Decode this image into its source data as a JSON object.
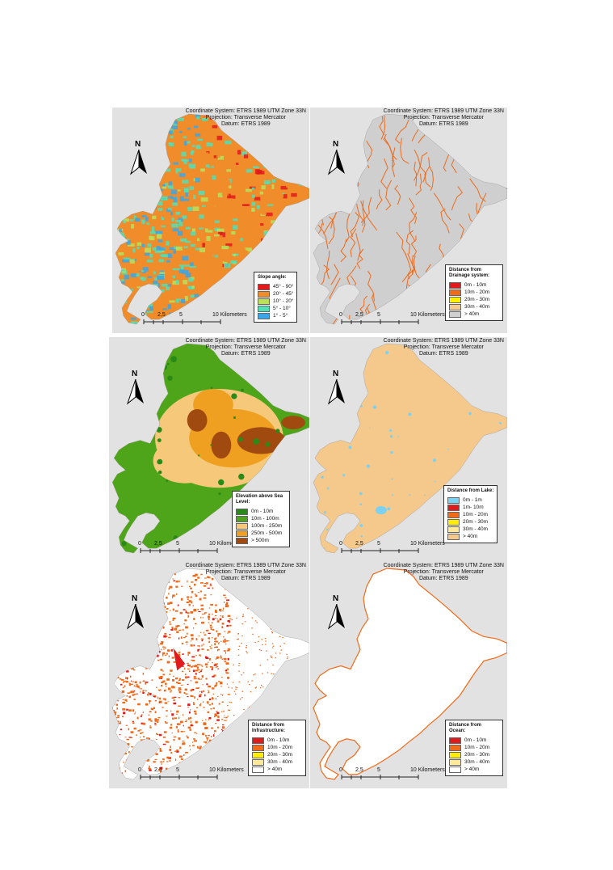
{
  "header": {
    "line1": "Coordinate System: ETRS 1989 UTM Zone 33N",
    "line2": "Projection: Transverse Mercator",
    "line3": "Datum: ETRS 1989"
  },
  "north_label": "N",
  "scale": {
    "t0": "0",
    "t1": "2,5",
    "t2": "5",
    "t3": "10 Kilometers"
  },
  "panels": [
    {
      "id": "slope",
      "legend_title": "Slope angle:",
      "items": [
        {
          "label": "45° - 90°",
          "color": "#e31a1c"
        },
        {
          "label": "20° - 45°",
          "color": "#f08c2a"
        },
        {
          "label": "10° - 20°",
          "color": "#b8e05a"
        },
        {
          "label": "5° - 10°",
          "color": "#4fe0b8"
        },
        {
          "label": "1° - 5°",
          "color": "#3aa6e8"
        }
      ]
    },
    {
      "id": "drainage",
      "legend_title": "Distance from Drainage system:",
      "items": [
        {
          "label": "0m - 10m",
          "color": "#e31a1c"
        },
        {
          "label": "10m - 20m",
          "color": "#f06a1a"
        },
        {
          "label": "20m - 30m",
          "color": "#ffee00"
        },
        {
          "label": "30m - 40m",
          "color": "#f5c88c"
        },
        {
          "label": "> 40m",
          "color": "#cfcfcf"
        }
      ]
    },
    {
      "id": "elevation",
      "legend_title": "Elevation above Sea Level:",
      "items": [
        {
          "label": "0m - 10m",
          "color": "#2a8a18"
        },
        {
          "label": "10m - 100m",
          "color": "#4ea51a"
        },
        {
          "label": "100m - 250m",
          "color": "#f5c87a"
        },
        {
          "label": "250m - 500m",
          "color": "#f0a020"
        },
        {
          "label": "> 500m",
          "color": "#a04a10"
        }
      ]
    },
    {
      "id": "lake",
      "legend_title": "Distance from Lake:",
      "items": [
        {
          "label": "0m - 1m",
          "color": "#7ad2f0"
        },
        {
          "label": "1m- 10m",
          "color": "#e31a1c"
        },
        {
          "label": "10m - 20m",
          "color": "#f06a1a"
        },
        {
          "label": "20m - 30m",
          "color": "#ffee00"
        },
        {
          "label": "30m - 40m",
          "color": "#ffe89a"
        },
        {
          "label": "> 40m",
          "color": "#f5c88c"
        }
      ]
    },
    {
      "id": "infrastructure",
      "legend_title": "Distance from Infrastructure:",
      "items": [
        {
          "label": "0m - 10m",
          "color": "#e31a1c"
        },
        {
          "label": "10m - 20m",
          "color": "#f06a1a"
        },
        {
          "label": "20m - 30m",
          "color": "#ffee00"
        },
        {
          "label": "30m - 40m",
          "color": "#ffe89a"
        },
        {
          "label": "> 40m",
          "color": "#ffffff"
        }
      ]
    },
    {
      "id": "ocean",
      "legend_title": "Distance from Ocean:",
      "items": [
        {
          "label": "0m - 10m",
          "color": "#e31a1c"
        },
        {
          "label": "10m - 20m",
          "color": "#f06a1a"
        },
        {
          "label": "20m - 30m",
          "color": "#ffee00"
        },
        {
          "label": "30m - 40m",
          "color": "#ffe89a"
        },
        {
          "label": "> 40m",
          "color": "#ffffff"
        }
      ]
    }
  ]
}
